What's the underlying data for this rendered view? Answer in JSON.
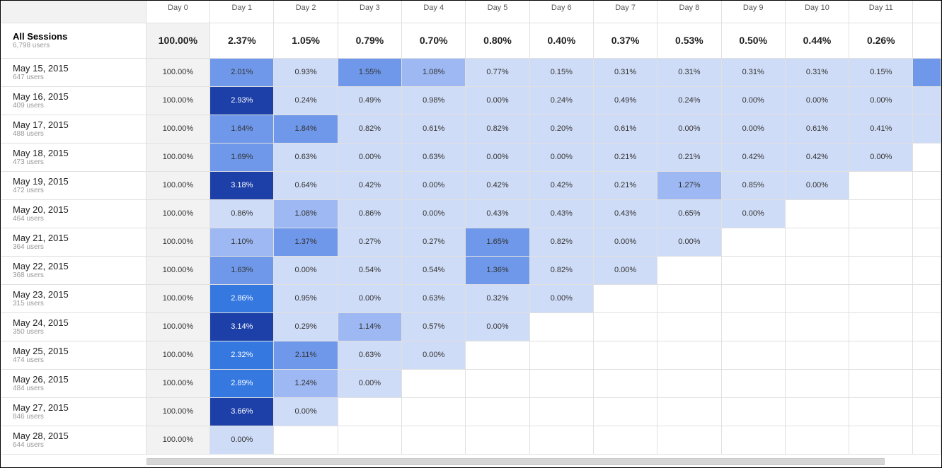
{
  "header": {
    "days": [
      "Day 0",
      "Day 1",
      "Day 2",
      "Day 3",
      "Day 4",
      "Day 5",
      "Day 6",
      "Day 7",
      "Day 8",
      "Day 9",
      "Day 10",
      "Day 11"
    ]
  },
  "totals": {
    "title": "All Sessions",
    "users": "6,798 users",
    "values": [
      "100.00%",
      "2.37%",
      "1.05%",
      "0.79%",
      "0.70%",
      "0.80%",
      "0.40%",
      "0.37%",
      "0.53%",
      "0.50%",
      "0.44%",
      "0.26%"
    ]
  },
  "rows": [
    {
      "date": "May 15, 2015",
      "users": "647 users",
      "values": [
        "100.00%",
        "2.01%",
        "0.93%",
        "1.55%",
        "1.08%",
        "0.77%",
        "0.15%",
        "0.31%",
        "0.31%",
        "0.31%",
        "0.31%",
        "0.15%"
      ],
      "extra": "partial"
    },
    {
      "date": "May 16, 2015",
      "users": "409 users",
      "values": [
        "100.00%",
        "2.93%",
        "0.24%",
        "0.49%",
        "0.98%",
        "0.00%",
        "0.24%",
        "0.49%",
        "0.24%",
        "0.00%",
        "0.00%",
        "0.00%"
      ],
      "extra": "light"
    },
    {
      "date": "May 17, 2015",
      "users": "488 users",
      "values": [
        "100.00%",
        "1.64%",
        "1.84%",
        "0.82%",
        "0.61%",
        "0.82%",
        "0.20%",
        "0.61%",
        "0.00%",
        "0.00%",
        "0.61%",
        "0.41%"
      ],
      "extra": "light"
    },
    {
      "date": "May 18, 2015",
      "users": "473 users",
      "values": [
        "100.00%",
        "1.69%",
        "0.63%",
        "0.00%",
        "0.63%",
        "0.00%",
        "0.00%",
        "0.21%",
        "0.21%",
        "0.42%",
        "0.42%",
        "0.00%"
      ]
    },
    {
      "date": "May 19, 2015",
      "users": "472 users",
      "values": [
        "100.00%",
        "3.18%",
        "0.64%",
        "0.42%",
        "0.00%",
        "0.42%",
        "0.42%",
        "0.21%",
        "1.27%",
        "0.85%",
        "0.00%"
      ]
    },
    {
      "date": "May 20, 2015",
      "users": "464 users",
      "values": [
        "100.00%",
        "0.86%",
        "1.08%",
        "0.86%",
        "0.00%",
        "0.43%",
        "0.43%",
        "0.43%",
        "0.65%",
        "0.00%"
      ]
    },
    {
      "date": "May 21, 2015",
      "users": "364 users",
      "values": [
        "100.00%",
        "1.10%",
        "1.37%",
        "0.27%",
        "0.27%",
        "1.65%",
        "0.82%",
        "0.00%",
        "0.00%"
      ]
    },
    {
      "date": "May 22, 2015",
      "users": "368 users",
      "values": [
        "100.00%",
        "1.63%",
        "0.00%",
        "0.54%",
        "0.54%",
        "1.36%",
        "0.82%",
        "0.00%"
      ]
    },
    {
      "date": "May 23, 2015",
      "users": "315 users",
      "values": [
        "100.00%",
        "2.86%",
        "0.95%",
        "0.00%",
        "0.63%",
        "0.32%",
        "0.00%"
      ]
    },
    {
      "date": "May 24, 2015",
      "users": "350 users",
      "values": [
        "100.00%",
        "3.14%",
        "0.29%",
        "1.14%",
        "0.57%",
        "0.00%"
      ]
    },
    {
      "date": "May 25, 2015",
      "users": "474 users",
      "values": [
        "100.00%",
        "2.32%",
        "2.11%",
        "0.63%",
        "0.00%"
      ]
    },
    {
      "date": "May 26, 2015",
      "users": "484 users",
      "values": [
        "100.00%",
        "2.89%",
        "1.24%",
        "0.00%"
      ]
    },
    {
      "date": "May 27, 2015",
      "users": "846 users",
      "values": [
        "100.00%",
        "3.66%",
        "0.00%"
      ]
    },
    {
      "date": "May 28, 2015",
      "users": "644 users",
      "values": [
        "100.00%",
        "0.00%"
      ]
    }
  ],
  "colors": {
    "heat_levels": [
      "#cfdcf7",
      "#9db8f2",
      "#6f98ea",
      "#3478e0",
      "#1c3fa8"
    ],
    "heat_text_dark": "#333333",
    "heat_text_light": "#ffffff",
    "day0_bg": "#f2f2f2"
  }
}
